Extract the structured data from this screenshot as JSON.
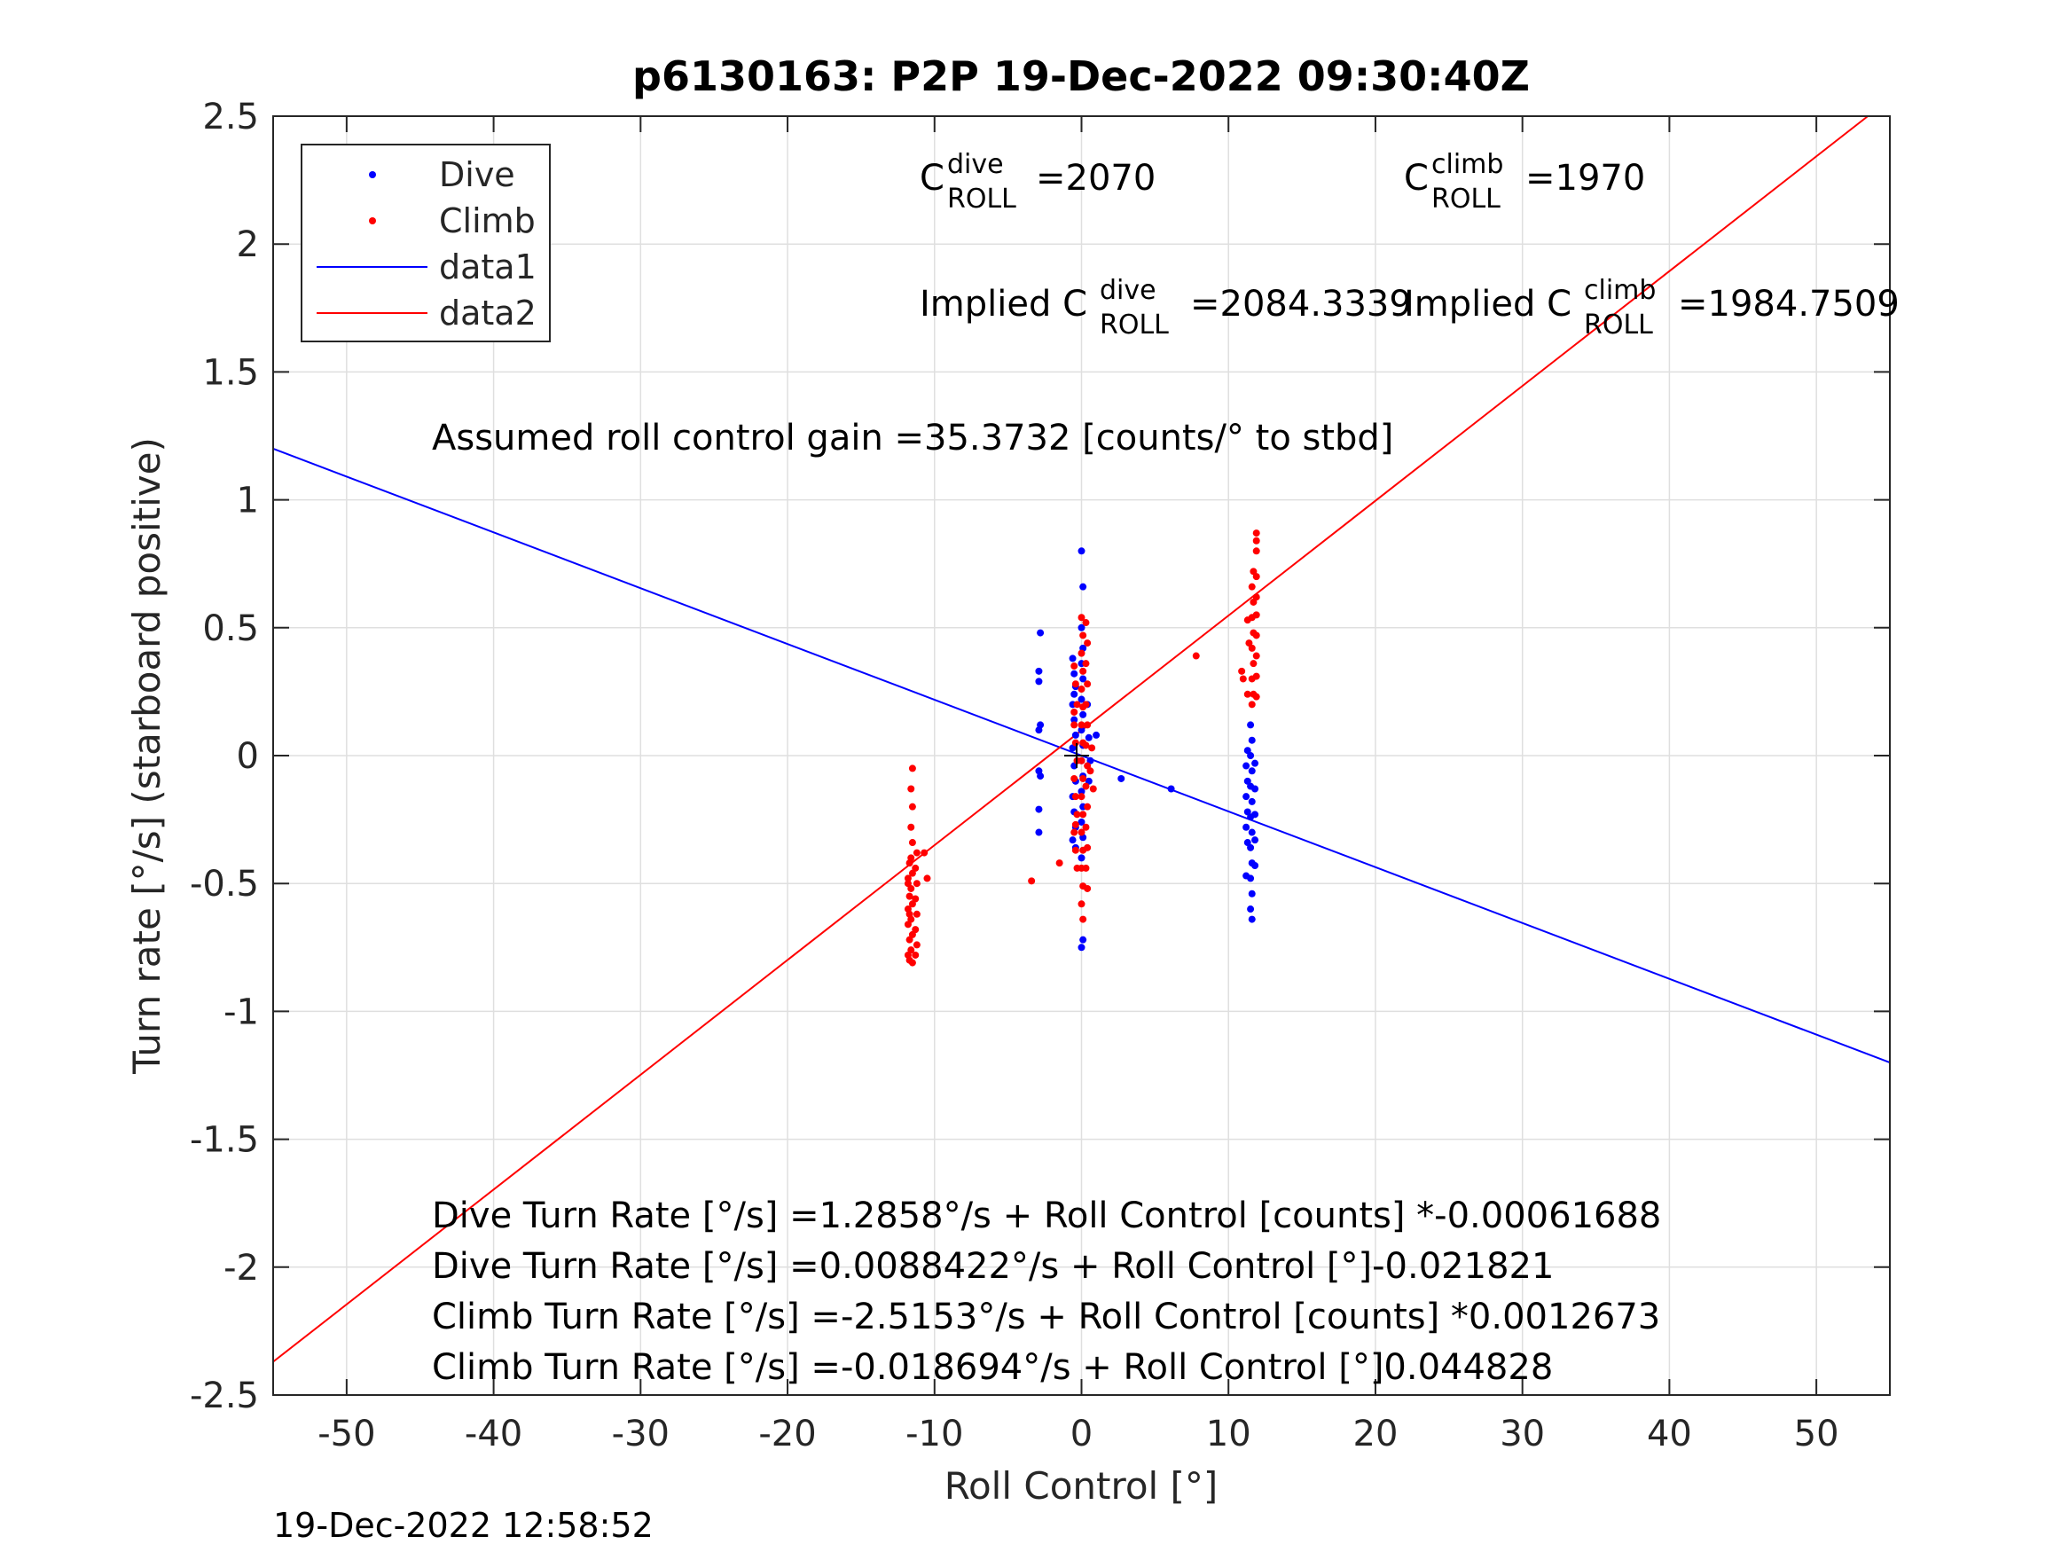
{
  "chart_data": {
    "type": "scatter",
    "title": "p6130163: P2P 19-Dec-2022 09:30:40Z",
    "xlabel": "Roll Control [°]",
    "ylabel": "Turn rate [°/s] (starboard positive)",
    "xlim": [
      -55,
      55
    ],
    "ylim": [
      -2.5,
      2.5
    ],
    "xticks": [
      -50,
      -40,
      -30,
      -20,
      -10,
      0,
      10,
      20,
      30,
      40,
      50
    ],
    "yticks": [
      -2.5,
      -2,
      -1.5,
      -1,
      -0.5,
      0,
      0.5,
      1,
      1.5,
      2,
      2.5
    ],
    "xtick_labels": [
      "-50",
      "-40",
      "-30",
      "-20",
      "-10",
      "0",
      "10",
      "20",
      "30",
      "40",
      "50"
    ],
    "ytick_labels": [
      "-2.5",
      "-2",
      "-1.5",
      "-1",
      "-0.5",
      "0",
      "0.5",
      "1",
      "1.5",
      "2",
      "2.5"
    ],
    "grid": true,
    "legend_position": "top-left",
    "legend": [
      {
        "label": "Dive",
        "marker": "dot",
        "color": "#0000ff"
      },
      {
        "label": "Climb",
        "marker": "dot",
        "color": "#ff0000"
      },
      {
        "label": "data1",
        "marker": "line",
        "color": "#0000ff"
      },
      {
        "label": "data2",
        "marker": "line",
        "color": "#ff0000"
      }
    ],
    "series": [
      {
        "name": "Dive",
        "kind": "scatter",
        "color": "#0000ff",
        "points": [
          [
            -2.8,
            0.48
          ],
          [
            -2.9,
            0.33
          ],
          [
            -2.9,
            0.29
          ],
          [
            -2.8,
            0.12
          ],
          [
            -2.9,
            0.1
          ],
          [
            -2.9,
            -0.06
          ],
          [
            -2.8,
            -0.08
          ],
          [
            -2.9,
            -0.21
          ],
          [
            -2.9,
            -0.3
          ],
          [
            -0.6,
            0.38
          ],
          [
            -0.5,
            0.32
          ],
          [
            -0.4,
            0.27
          ],
          [
            -0.6,
            0.2
          ],
          [
            -0.5,
            0.14
          ],
          [
            -0.4,
            0.08
          ],
          [
            -0.6,
            0.03
          ],
          [
            -0.5,
            -0.04
          ],
          [
            -0.4,
            -0.1
          ],
          [
            -0.6,
            -0.16
          ],
          [
            -0.5,
            -0.22
          ],
          [
            -0.4,
            -0.28
          ],
          [
            -0.6,
            -0.33
          ],
          [
            -0.5,
            0.24
          ],
          [
            -0.4,
            -0.36
          ],
          [
            0.0,
            0.8
          ],
          [
            0.1,
            0.66
          ],
          [
            0.0,
            0.5
          ],
          [
            0.1,
            0.42
          ],
          [
            0.0,
            0.36
          ],
          [
            0.1,
            0.3
          ],
          [
            0.0,
            0.22
          ],
          [
            0.1,
            0.16
          ],
          [
            0.0,
            0.1
          ],
          [
            0.1,
            0.04
          ],
          [
            0.0,
            -0.02
          ],
          [
            0.1,
            -0.08
          ],
          [
            0.0,
            -0.14
          ],
          [
            0.1,
            -0.2
          ],
          [
            0.0,
            -0.26
          ],
          [
            0.1,
            -0.32
          ],
          [
            0.0,
            -0.4
          ],
          [
            0.1,
            -0.72
          ],
          [
            0.0,
            -0.75
          ],
          [
            0.4,
            0.2
          ],
          [
            0.5,
            0.07
          ],
          [
            0.6,
            -0.02
          ],
          [
            0.5,
            -0.1
          ],
          [
            1.0,
            0.08
          ],
          [
            2.7,
            -0.09
          ],
          [
            6.1,
            -0.13
          ],
          [
            11.3,
            0.02
          ],
          [
            11.2,
            -0.04
          ],
          [
            11.3,
            -0.1
          ],
          [
            11.2,
            -0.16
          ],
          [
            11.3,
            -0.22
          ],
          [
            11.2,
            -0.28
          ],
          [
            11.3,
            -0.34
          ],
          [
            11.2,
            -0.47
          ],
          [
            11.5,
            0.12
          ],
          [
            11.6,
            0.06
          ],
          [
            11.5,
            0.0
          ],
          [
            11.6,
            -0.06
          ],
          [
            11.5,
            -0.12
          ],
          [
            11.6,
            -0.18
          ],
          [
            11.5,
            -0.24
          ],
          [
            11.6,
            -0.3
          ],
          [
            11.5,
            -0.36
          ],
          [
            11.6,
            -0.42
          ],
          [
            11.5,
            -0.48
          ],
          [
            11.6,
            -0.54
          ],
          [
            11.5,
            -0.6
          ],
          [
            11.6,
            -0.64
          ],
          [
            11.8,
            -0.03
          ],
          [
            11.8,
            -0.13
          ],
          [
            11.8,
            -0.23
          ],
          [
            11.8,
            -0.33
          ],
          [
            11.8,
            -0.43
          ]
        ]
      },
      {
        "name": "Climb",
        "kind": "scatter",
        "color": "#ff0000",
        "points": [
          [
            -11.8,
            -0.6
          ],
          [
            -11.7,
            -0.55
          ],
          [
            -11.8,
            -0.48
          ],
          [
            -11.7,
            -0.42
          ],
          [
            -11.8,
            -0.66
          ],
          [
            -11.7,
            -0.72
          ],
          [
            -11.8,
            -0.78
          ],
          [
            -11.7,
            -0.8
          ],
          [
            -11.8,
            -0.5
          ],
          [
            -11.7,
            -0.62
          ],
          [
            -11.5,
            -0.05
          ],
          [
            -11.6,
            -0.13
          ],
          [
            -11.5,
            -0.2
          ],
          [
            -11.6,
            -0.28
          ],
          [
            -11.5,
            -0.34
          ],
          [
            -11.6,
            -0.4
          ],
          [
            -11.5,
            -0.46
          ],
          [
            -11.6,
            -0.52
          ],
          [
            -11.5,
            -0.58
          ],
          [
            -11.6,
            -0.64
          ],
          [
            -11.5,
            -0.7
          ],
          [
            -11.6,
            -0.76
          ],
          [
            -11.5,
            -0.81
          ],
          [
            -11.2,
            -0.38
          ],
          [
            -11.3,
            -0.44
          ],
          [
            -11.2,
            -0.5
          ],
          [
            -11.3,
            -0.56
          ],
          [
            -11.2,
            -0.62
          ],
          [
            -11.3,
            -0.68
          ],
          [
            -11.2,
            -0.74
          ],
          [
            -11.3,
            -0.78
          ],
          [
            -10.7,
            -0.38
          ],
          [
            -10.5,
            -0.48
          ],
          [
            -3.4,
            -0.49
          ],
          [
            -1.5,
            -0.42
          ],
          [
            -0.5,
            0.35
          ],
          [
            -0.4,
            0.28
          ],
          [
            -0.3,
            0.2
          ],
          [
            -0.5,
            0.12
          ],
          [
            -0.4,
            0.05
          ],
          [
            -0.3,
            -0.02
          ],
          [
            -0.5,
            -0.09
          ],
          [
            -0.4,
            -0.16
          ],
          [
            -0.3,
            -0.23
          ],
          [
            -0.5,
            -0.3
          ],
          [
            -0.4,
            -0.37
          ],
          [
            -0.3,
            -0.44
          ],
          [
            -0.5,
            0.17
          ],
          [
            -0.4,
            -0.27
          ],
          [
            0.0,
            0.54
          ],
          [
            0.1,
            0.47
          ],
          [
            0.0,
            0.4
          ],
          [
            0.1,
            0.33
          ],
          [
            0.0,
            0.26
          ],
          [
            0.1,
            0.19
          ],
          [
            0.0,
            0.12
          ],
          [
            0.1,
            0.05
          ],
          [
            0.0,
            -0.02
          ],
          [
            0.1,
            -0.09
          ],
          [
            0.0,
            -0.16
          ],
          [
            0.1,
            -0.23
          ],
          [
            0.0,
            -0.3
          ],
          [
            0.1,
            -0.37
          ],
          [
            0.0,
            -0.44
          ],
          [
            0.1,
            -0.51
          ],
          [
            0.0,
            -0.58
          ],
          [
            0.1,
            -0.64
          ],
          [
            0.3,
            0.52
          ],
          [
            0.4,
            0.44
          ],
          [
            0.3,
            0.36
          ],
          [
            0.4,
            0.28
          ],
          [
            0.3,
            0.2
          ],
          [
            0.4,
            0.12
          ],
          [
            0.3,
            0.04
          ],
          [
            0.4,
            -0.04
          ],
          [
            0.3,
            -0.12
          ],
          [
            0.4,
            -0.2
          ],
          [
            0.3,
            -0.28
          ],
          [
            0.4,
            -0.36
          ],
          [
            0.3,
            -0.44
          ],
          [
            0.4,
            -0.52
          ],
          [
            0.7,
            0.03
          ],
          [
            0.6,
            -0.06
          ],
          [
            0.8,
            -0.13
          ],
          [
            7.8,
            0.39
          ],
          [
            10.9,
            0.33
          ],
          [
            11.0,
            0.3
          ],
          [
            11.3,
            0.24
          ],
          [
            11.3,
            0.53
          ],
          [
            11.4,
            0.44
          ],
          [
            11.6,
            0.66
          ],
          [
            11.7,
            0.6
          ],
          [
            11.6,
            0.54
          ],
          [
            11.7,
            0.48
          ],
          [
            11.6,
            0.42
          ],
          [
            11.7,
            0.36
          ],
          [
            11.6,
            0.3
          ],
          [
            11.7,
            0.24
          ],
          [
            11.6,
            0.2
          ],
          [
            11.7,
            0.72
          ],
          [
            11.9,
            0.87
          ],
          [
            11.9,
            0.84
          ],
          [
            11.9,
            0.8
          ],
          [
            11.9,
            0.7
          ],
          [
            11.9,
            0.62
          ],
          [
            11.9,
            0.55
          ],
          [
            11.9,
            0.47
          ],
          [
            11.9,
            0.39
          ],
          [
            11.9,
            0.31
          ],
          [
            11.9,
            0.23
          ]
        ]
      },
      {
        "name": "data1",
        "kind": "line",
        "color": "#0000ff",
        "x": [
          -55,
          55
        ],
        "y": [
          1.2,
          -1.2
        ]
      },
      {
        "name": "data2",
        "kind": "line",
        "color": "#ff0000",
        "x": [
          -55,
          53.5
        ],
        "y": [
          -2.37,
          2.5
        ]
      }
    ],
    "annotations": {
      "c_dive": {
        "prefix": "C",
        "sup": "dive",
        "sub": "ROLL",
        "value": "=2070"
      },
      "c_climb": {
        "prefix": "C",
        "sup": "climb",
        "sub": "ROLL",
        "value": "=1970"
      },
      "implied_dive": {
        "prefix": "Implied C",
        "sup": "dive",
        "sub": "ROLL",
        "value": "=2084.3339"
      },
      "implied_climb": {
        "prefix": "Implied C",
        "sup": "climb",
        "sub": "ROLL",
        "value": "=1984.7509"
      },
      "gain": "Assumed roll control gain =35.3732 [counts/° to stbd]",
      "fit_lines": [
        "Dive Turn Rate [°/s] =1.2858°/s + Roll Control [counts] *-0.00061688",
        "Dive Turn Rate [°/s] =0.0088422°/s + Roll Control [°]-0.021821",
        "Climb Turn Rate [°/s] =-2.5153°/s + Roll Control [counts] *0.0012673",
        "Climb Turn Rate [°/s] =-0.018694°/s + Roll Control [°]0.044828"
      ]
    }
  },
  "footer": {
    "timestamp": "19-Dec-2022 12:58:52"
  }
}
